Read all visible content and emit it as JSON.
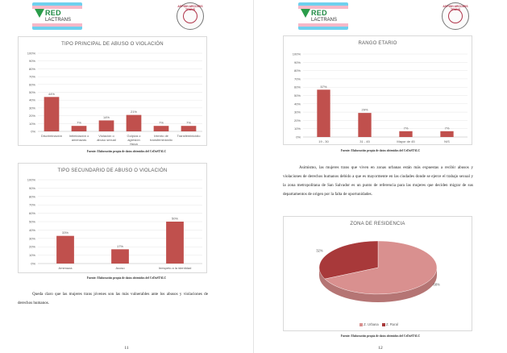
{
  "pages": [
    {
      "page_number": "11",
      "logo": {
        "name": "RED",
        "sub": "LACTRANS"
      },
      "seal": {
        "text": "ASPIDH ARCOIRIS TRANS"
      },
      "charts": [
        {
          "title": "TIPO PRINCIPAL DE ABUSO O VIOLACIÓN",
          "source": "Fuente: Elaboración propia de datos obtenidos del CeDoSTALC"
        },
        {
          "title": "TIPO SECUNDARIO DE ABUSO O VIOLACIÓN",
          "source": "Fuente: Elaboración propia de datos obtenidos del CeDoSTALC"
        }
      ],
      "paragraph": "Queda claro que las mujeres trans jóvenes son las más vulnerables ante los abusos y violaciones de derechos humanos."
    },
    {
      "page_number": "12",
      "logo": {
        "name": "RED",
        "sub": "LACTRANS"
      },
      "seal": {
        "text": "ASPIDH ARCOIRIS TRANS"
      },
      "charts": [
        {
          "title": "RANGO ETARIO",
          "source": "Fuente: Elaboración propia de datos obtenidos del CeDoSTALC"
        },
        {
          "title": "ZONA DE RESIDENCIA",
          "source": "Fuente: Elaboración propia de datos obtenidos del CeDoSTALC"
        }
      ],
      "paragraph": "Asimismo, las mujeres trans que viven en zonas urbanas están más expuestas a recibir abusos y violaciones de derechos humanos debido a que es mayormente en las ciudades donde se ejerce el trabajo sexual y la zona metropolitana de San Salvador es un punto de referencia para las mujeres que deciden migrar de sus departamentos de origen por la falta de oportunidades."
    }
  ],
  "colors": {
    "bar": "#c0504d",
    "pie_urban": "#d9908f",
    "pie_rural": "#a8393a",
    "grid": "#e6e6e6",
    "text": "#595959"
  },
  "chart_data": [
    {
      "type": "bar",
      "title": "TIPO PRINCIPAL DE ABUSO O VIOLACIÓN",
      "categories": [
        "Discriminación",
        "Intimidación o amenazas",
        "Violación o abuso sexual",
        "Golpiza o agresión física",
        "Intento de transfeminicidio",
        "Transfeminicidio"
      ],
      "values": [
        44,
        7,
        14,
        21,
        7,
        7
      ],
      "ylim": [
        0,
        100
      ],
      "yticks": [
        "0%",
        "10%",
        "20%",
        "30%",
        "40%",
        "50%",
        "60%",
        "70%",
        "80%",
        "90%",
        "100%"
      ],
      "grid": true
    },
    {
      "type": "bar",
      "title": "TIPO SECUNDARIO DE ABUSO O VIOLACIÓN",
      "categories": [
        "Amenaza",
        "Acoso",
        "Irrespeto a la identidad"
      ],
      "values": [
        33,
        17,
        50
      ],
      "ylim": [
        0,
        100
      ],
      "yticks": [
        "0%",
        "10%",
        "20%",
        "30%",
        "40%",
        "50%",
        "60%",
        "70%",
        "80%",
        "90%",
        "100%"
      ],
      "grid": true
    },
    {
      "type": "bar",
      "title": "RANGO ETARIO",
      "categories": [
        "19 - 30",
        "31 - 45",
        "Mayor de 45",
        "N/S"
      ],
      "values": [
        57,
        29,
        7,
        7
      ],
      "ylim": [
        0,
        100
      ],
      "yticks": [
        "0%",
        "10%",
        "20%",
        "30%",
        "40%",
        "50%",
        "60%",
        "70%",
        "80%",
        "90%",
        "100%"
      ],
      "grid": true
    },
    {
      "type": "pie",
      "title": "ZONA DE RESIDENCIA",
      "categories": [
        "Z. Urbana",
        "Z. Rural"
      ],
      "values": [
        68,
        32
      ],
      "legend": "bottom"
    }
  ]
}
